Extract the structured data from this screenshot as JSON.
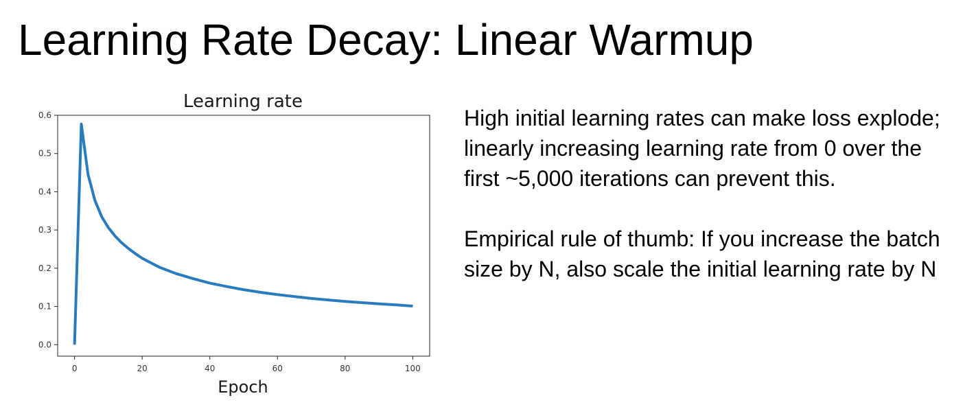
{
  "slide": {
    "title": "Learning Rate Decay: Linear Warmup",
    "paragraphs": [
      "High initial learning rates can make loss explode; linearly increasing learning rate from 0 over the first ~5,000 iterations can prevent this.",
      "Empirical rule of thumb: If you increase the batch size by N, also scale the initial learning rate by N"
    ]
  },
  "chart_data": {
    "type": "line",
    "title": "Learning rate",
    "xlabel": "Epoch",
    "ylabel": "",
    "xlim": [
      -5,
      105
    ],
    "ylim": [
      -0.03,
      0.6
    ],
    "xticks": [
      0,
      20,
      40,
      60,
      80,
      100
    ],
    "yticks": [
      0.0,
      0.1,
      0.2,
      0.3,
      0.4,
      0.5,
      0.6
    ],
    "xtick_labels": [
      "0",
      "20",
      "40",
      "60",
      "80",
      "100"
    ],
    "ytick_labels": [
      "0.0",
      "0.1",
      "0.2",
      "0.3",
      "0.4",
      "0.5",
      "0.6"
    ],
    "grid": false,
    "series": [
      {
        "color": "#2a7bbd",
        "x": [
          0,
          2,
          4,
          6,
          8,
          10,
          12,
          14,
          16,
          18,
          20,
          25,
          30,
          35,
          40,
          45,
          50,
          55,
          60,
          65,
          70,
          75,
          80,
          85,
          90,
          95,
          100
        ],
        "y": [
          0.0,
          0.577,
          0.445,
          0.378,
          0.335,
          0.306,
          0.284,
          0.266,
          0.251,
          0.238,
          0.226,
          0.203,
          0.186,
          0.173,
          0.161,
          0.152,
          0.144,
          0.137,
          0.131,
          0.126,
          0.121,
          0.117,
          0.113,
          0.11,
          0.107,
          0.104,
          0.101
        ]
      }
    ]
  }
}
